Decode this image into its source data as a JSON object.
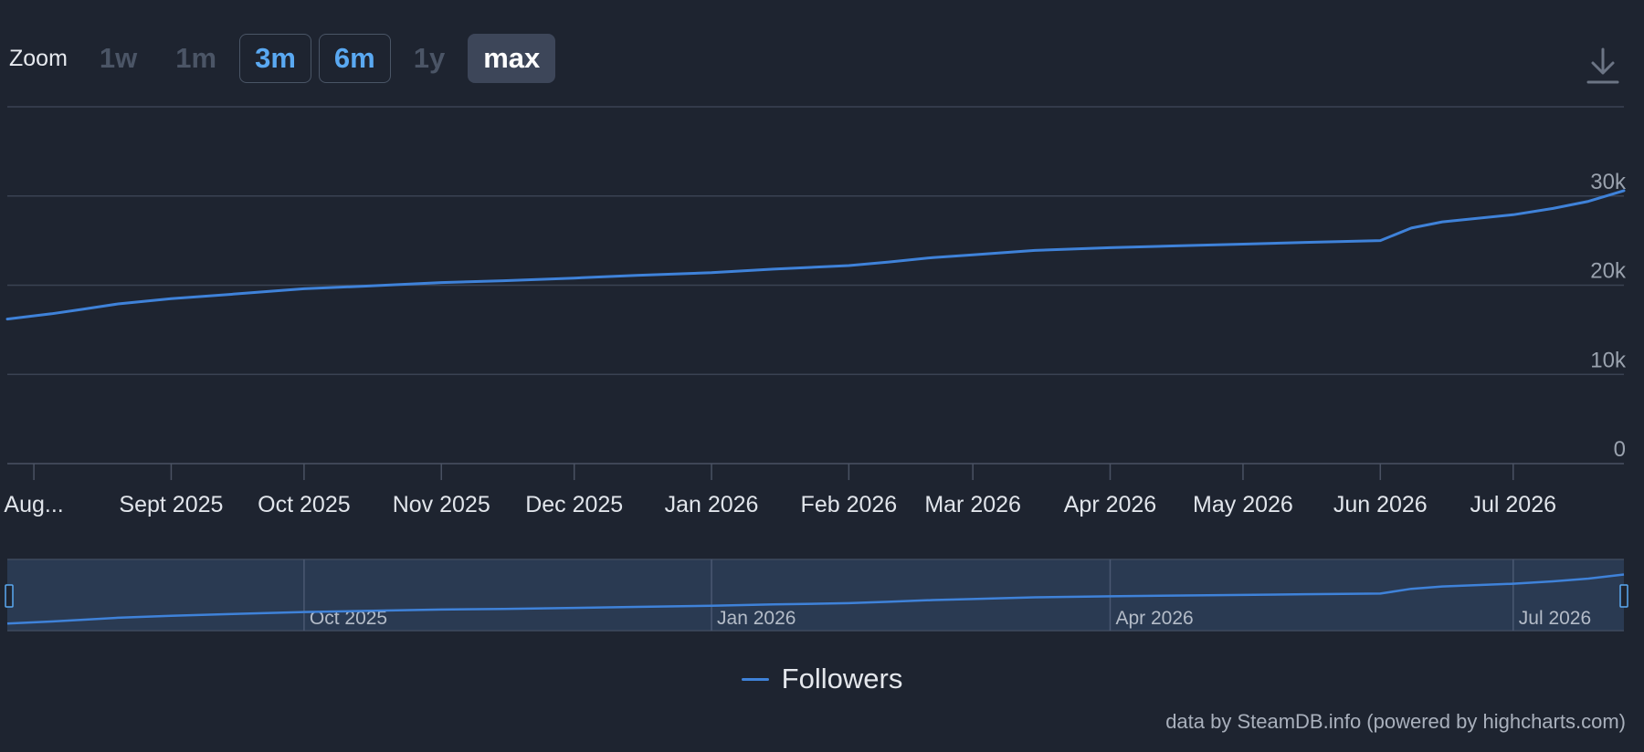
{
  "zoom": {
    "label": "Zoom",
    "buttons": [
      {
        "label": "1w",
        "state": "disabled"
      },
      {
        "label": "1m",
        "state": "disabled"
      },
      {
        "label": "3m",
        "state": "highlight"
      },
      {
        "label": "6m",
        "state": "highlight"
      },
      {
        "label": "1y",
        "state": "disabled"
      },
      {
        "label": "max",
        "state": "selected"
      }
    ]
  },
  "icons": {
    "download": "download-icon"
  },
  "chart_data": {
    "type": "line",
    "title": "",
    "xlabel": "",
    "ylabel": "",
    "ylim": [
      0,
      40000
    ],
    "y_ticks": [
      0,
      10000,
      20000,
      30000
    ],
    "y_tick_labels": [
      "0",
      "10k",
      "20k",
      "30k"
    ],
    "x_tick_labels": [
      "Aug...",
      "Sept 2025",
      "Oct 2025",
      "Nov 2025",
      "Dec 2025",
      "Jan 2026",
      "Feb 2026",
      "Mar 2026",
      "Apr 2026",
      "May 2026",
      "Jun 2026",
      "Jul 2026"
    ],
    "x_tick_dates": [
      "2025-08-01",
      "2025-09-01",
      "2025-10-01",
      "2025-11-01",
      "2025-12-01",
      "2026-01-01",
      "2026-02-01",
      "2026-03-01",
      "2026-04-01",
      "2026-05-01",
      "2026-06-01",
      "2026-07-01"
    ],
    "x_range": [
      "2025-07-26",
      "2026-07-26"
    ],
    "series": [
      {
        "name": "Followers",
        "color": "#3f82d9",
        "points": [
          [
            "2025-07-26",
            16200
          ],
          [
            "2025-08-05",
            16800
          ],
          [
            "2025-08-12",
            17300
          ],
          [
            "2025-08-20",
            17900
          ],
          [
            "2025-09-01",
            18500
          ],
          [
            "2025-09-15",
            19000
          ],
          [
            "2025-10-01",
            19600
          ],
          [
            "2025-10-15",
            19900
          ],
          [
            "2025-11-01",
            20300
          ],
          [
            "2025-11-15",
            20500
          ],
          [
            "2025-12-01",
            20800
          ],
          [
            "2025-12-15",
            21100
          ],
          [
            "2026-01-01",
            21400
          ],
          [
            "2026-01-15",
            21800
          ],
          [
            "2026-02-01",
            22200
          ],
          [
            "2026-02-10",
            22600
          ],
          [
            "2026-02-20",
            23100
          ],
          [
            "2026-03-01",
            23400
          ],
          [
            "2026-03-15",
            23900
          ],
          [
            "2026-04-01",
            24200
          ],
          [
            "2026-04-15",
            24400
          ],
          [
            "2026-05-01",
            24600
          ],
          [
            "2026-05-15",
            24800
          ],
          [
            "2026-06-01",
            25000
          ],
          [
            "2026-06-08",
            26400
          ],
          [
            "2026-06-15",
            27100
          ],
          [
            "2026-07-01",
            27900
          ],
          [
            "2026-07-10",
            28600
          ],
          [
            "2026-07-18",
            29400
          ],
          [
            "2026-07-26",
            30600
          ]
        ]
      }
    ],
    "navigator": {
      "x_tick_labels": [
        "Oct 2025",
        "Jan 2026",
        "Apr 2026",
        "Jul 2026"
      ],
      "x_tick_dates": [
        "2025-10-01",
        "2026-01-01",
        "2026-04-01",
        "2026-07-01"
      ]
    },
    "grid": true,
    "legend_position": "bottom-center"
  },
  "legend": {
    "label": "Followers"
  },
  "credits": "data by SteamDB.info (powered by highcharts.com)"
}
